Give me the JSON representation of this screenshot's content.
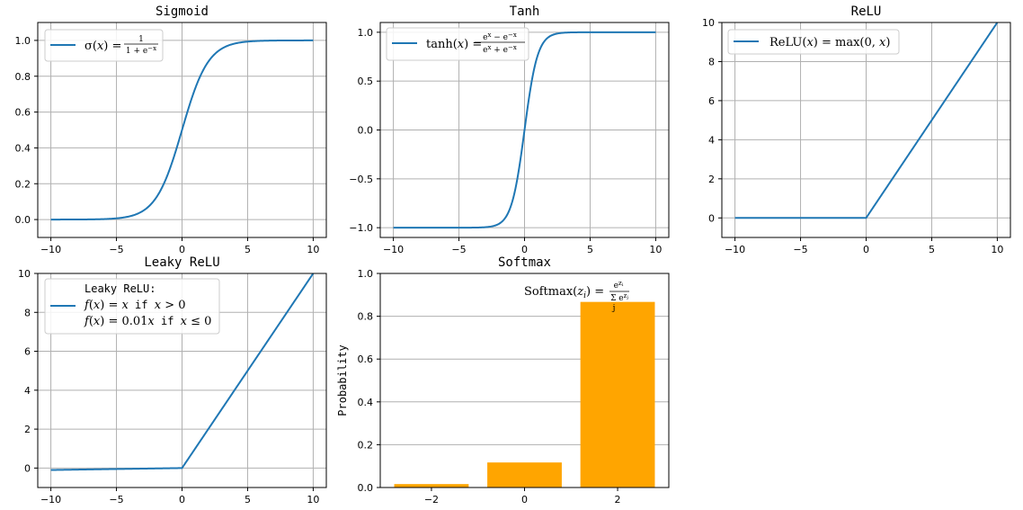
{
  "colors": {
    "line": "#1f77b4",
    "bar": "#ffa500",
    "grid": "#b0b0b0"
  },
  "chart_data": [
    {
      "type": "line",
      "title": "Sigmoid",
      "legend": "σ(x) = 1 / (1+e^−x)",
      "function": "sigmoid",
      "xlim": [
        -11,
        11
      ],
      "ylim": [
        -0.1,
        1.1
      ],
      "xticks": [
        -10,
        -5,
        0,
        5,
        10
      ],
      "yticks": [
        0.0,
        0.2,
        0.4,
        0.6,
        0.8,
        1.0
      ],
      "ytick_labels": [
        "0.0",
        "0.2",
        "0.4",
        "0.6",
        "0.8",
        "1.0"
      ],
      "grid": true,
      "legend_position": "upper-left",
      "x": [
        -10,
        -8,
        -6,
        -4,
        -3,
        -2,
        -1,
        0,
        1,
        2,
        3,
        4,
        6,
        8,
        10
      ],
      "y": [
        0.0,
        0.0003,
        0.0025,
        0.018,
        0.047,
        0.119,
        0.269,
        0.5,
        0.731,
        0.881,
        0.953,
        0.982,
        0.9975,
        0.9997,
        1.0
      ]
    },
    {
      "type": "line",
      "title": "Tanh",
      "legend": "tanh(x) = (e^x − e^−x) / (e^x + e^−x)",
      "function": "tanh",
      "xlim": [
        -11,
        11
      ],
      "ylim": [
        -1.1,
        1.1
      ],
      "xticks": [
        -10,
        -5,
        0,
        5,
        10
      ],
      "yticks": [
        -1.0,
        -0.5,
        0.0,
        0.5,
        1.0
      ],
      "ytick_labels": [
        "−1.0",
        "−0.5",
        "0.0",
        "0.5",
        "1.0"
      ],
      "grid": true,
      "legend_position": "upper-left",
      "x": [
        -10,
        -4,
        -3,
        -2,
        -1,
        -0.5,
        0,
        0.5,
        1,
        2,
        3,
        4,
        10
      ],
      "y": [
        -1.0,
        -0.999,
        -0.995,
        -0.964,
        -0.762,
        -0.462,
        0.0,
        0.462,
        0.762,
        0.964,
        0.995,
        0.999,
        1.0
      ]
    },
    {
      "type": "line",
      "title": "ReLU",
      "legend": "ReLU(x) = max(0, x)",
      "function": "relu",
      "xlim": [
        -11,
        11
      ],
      "ylim": [
        -1,
        10
      ],
      "xticks": [
        -10,
        -5,
        0,
        5,
        10
      ],
      "yticks": [
        0,
        2,
        4,
        6,
        8,
        10
      ],
      "ytick_labels": [
        "0",
        "2",
        "4",
        "6",
        "8",
        "10"
      ],
      "grid": true,
      "legend_position": "upper-left",
      "x": [
        -10,
        0,
        10
      ],
      "y": [
        0,
        0,
        10
      ]
    },
    {
      "type": "line",
      "title": "Leaky ReLU",
      "legend_lines": [
        "Leaky ReLU:",
        "f(x) = x  if  x > 0",
        "f(x) = 0.01x  if  x ≤ 0"
      ],
      "function": "leaky_relu",
      "xlim": [
        -11,
        11
      ],
      "ylim": [
        -1,
        10
      ],
      "xticks": [
        -10,
        -5,
        0,
        5,
        10
      ],
      "yticks": [
        0,
        2,
        4,
        6,
        8,
        10
      ],
      "ytick_labels": [
        "0",
        "2",
        "4",
        "6",
        "8",
        "10"
      ],
      "grid": true,
      "legend_position": "upper-left",
      "x": [
        -10,
        0,
        10
      ],
      "y": [
        -0.1,
        0,
        10
      ]
    },
    {
      "type": "bar",
      "title": "Softmax",
      "annotation": "Softmax(z_i) = e^(z_i) / Σ_j e^(z_j)",
      "ylabel": "Probability",
      "categories": [
        -2,
        0,
        2
      ],
      "xtick_labels": [
        "−2",
        "0",
        "2"
      ],
      "values": [
        0.016,
        0.117,
        0.867
      ],
      "xlim": [
        -3.1,
        3.1
      ],
      "ylim": [
        0,
        1.0
      ],
      "yticks": [
        0.0,
        0.2,
        0.4,
        0.6,
        0.8,
        1.0
      ],
      "ytick_labels": [
        "0.0",
        "0.2",
        "0.4",
        "0.6",
        "0.8",
        "1.0"
      ],
      "grid": "y"
    }
  ]
}
